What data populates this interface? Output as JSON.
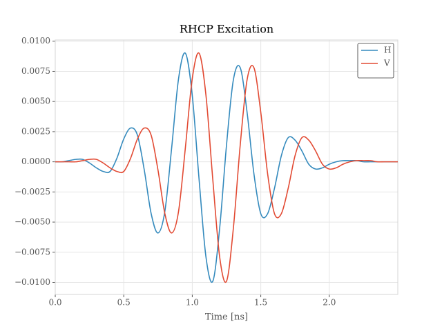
{
  "chart_data": {
    "type": "line",
    "title": "RHCP Excitation",
    "x_label": "Time [ns]",
    "x": [
      0,
      0.05,
      0.1,
      0.15,
      0.2,
      0.25,
      0.3,
      0.35,
      0.4,
      0.45,
      0.5,
      0.55,
      0.6,
      0.65,
      0.7,
      0.75,
      0.8,
      0.85,
      0.9,
      0.95,
      1,
      1.05,
      1.1,
      1.15,
      1.2,
      1.25,
      1.3,
      1.35,
      1.4,
      1.45,
      1.5,
      1.55,
      1.6,
      1.65,
      1.7,
      1.75,
      1.8,
      1.85,
      1.9,
      1.95,
      2,
      2.05,
      2.1,
      2.15,
      2.2,
      2.25,
      2.3,
      2.35,
      2.4,
      2.45,
      2.5
    ],
    "series": [
      {
        "name": "H",
        "color": "#348abd",
        "values": [
          0,
          0,
          0.0001,
          0.0002,
          0.0002,
          -0.0001,
          -0.0005,
          -0.0008,
          -0.0008,
          0.0003,
          0.0019,
          0.0028,
          0.0022,
          -0.0007,
          -0.0043,
          -0.0059,
          -0.0041,
          0.0012,
          0.0069,
          0.009,
          0.0055,
          -0.0015,
          -0.0079,
          -0.0099,
          -0.0055,
          0.0014,
          0.0068,
          0.0078,
          0.0041,
          -0.001,
          -0.0043,
          -0.0043,
          -0.0022,
          0.0005,
          0.002,
          0.0018,
          0.0009,
          -0.0002,
          -0.0006,
          -0.0005,
          -0.0002,
          0,
          0.0001,
          0.0001,
          0.0001,
          0,
          0,
          0,
          0,
          0,
          0
        ]
      },
      {
        "name": "V",
        "color": "#e24a33",
        "values": [
          0,
          0,
          0,
          0,
          0.0001,
          0.0002,
          0.0002,
          -0.0001,
          -0.0005,
          -0.0008,
          -0.0008,
          0.0003,
          0.0019,
          0.0028,
          0.0022,
          -0.0007,
          -0.0043,
          -0.0059,
          -0.0041,
          0.0012,
          0.0069,
          0.009,
          0.0055,
          -0.0015,
          -0.0079,
          -0.0099,
          -0.0055,
          0.0014,
          0.0068,
          0.0078,
          0.0041,
          -0.001,
          -0.0043,
          -0.0043,
          -0.0022,
          0.0005,
          0.002,
          0.0018,
          0.0009,
          -0.0002,
          -0.0006,
          -0.0005,
          -0.0002,
          0,
          0.0001,
          0.0001,
          0.0001,
          0,
          0,
          0,
          0
        ]
      }
    ],
    "xlim": [
      0,
      2.5
    ],
    "ylim": [
      -0.011,
      0.0101
    ],
    "xticks": [
      {
        "value": 0,
        "label": "0.0"
      },
      {
        "value": 0.5,
        "label": "0.5"
      },
      {
        "value": 1,
        "label": "1.0"
      },
      {
        "value": 1.5,
        "label": "1.5"
      },
      {
        "value": 2,
        "label": "2.0"
      }
    ],
    "yticks": [
      {
        "value": 0.01,
        "label": "0.0100"
      },
      {
        "value": 0.0075,
        "label": "0.0075"
      },
      {
        "value": 0.005,
        "label": "0.0050"
      },
      {
        "value": 0.0025,
        "label": "0.0025"
      },
      {
        "value": 0,
        "label": "0.0000"
      },
      {
        "value": -0.0025,
        "label": "−0.0025"
      },
      {
        "value": -0.005,
        "label": "−0.0050"
      },
      {
        "value": -0.0075,
        "label": "−0.0075"
      },
      {
        "value": -0.01,
        "label": "−0.0100"
      }
    ],
    "grid": true,
    "legend": "upper right"
  }
}
